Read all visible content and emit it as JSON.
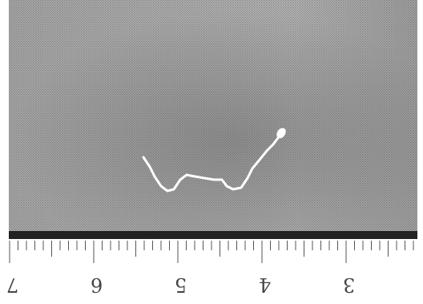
{
  "image": {
    "subject": "fiber-on-fabric",
    "colors": {
      "fabric": "#a9a9a9",
      "fabric_dark": "#7f7f7f",
      "fiber": "#ffffff",
      "ruler_band": "#222222",
      "ruler_ticks": "#555555"
    }
  },
  "ruler": {
    "labels": [
      "7",
      "6",
      "5",
      "4",
      "3"
    ]
  }
}
